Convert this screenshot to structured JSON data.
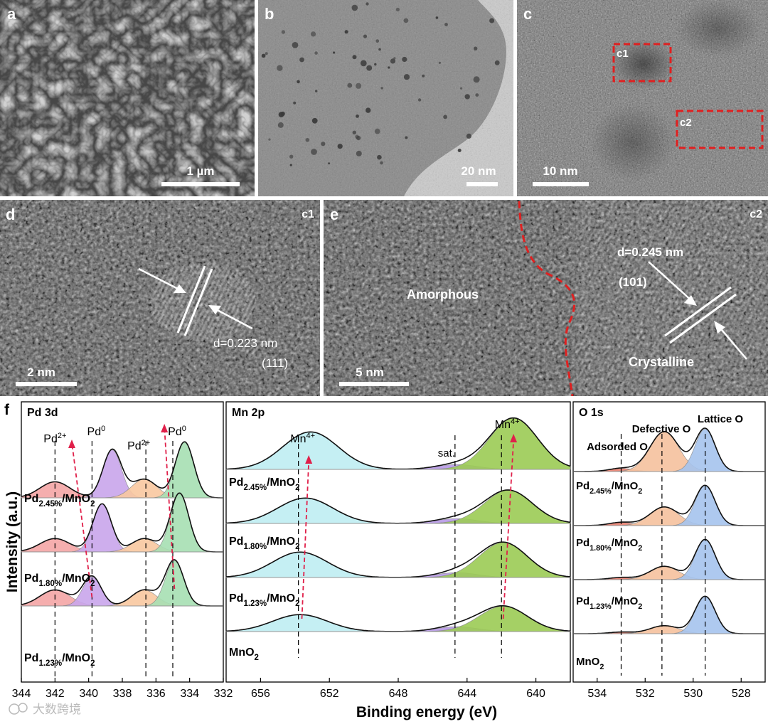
{
  "panels": {
    "a": {
      "letter": "a",
      "scale": "1 µm"
    },
    "b": {
      "letter": "b",
      "scale": "20 nm"
    },
    "c": {
      "letter": "c",
      "scale": "10 nm",
      "box1": "c1",
      "box2": "c2"
    },
    "d": {
      "letter": "d",
      "tag": "c1",
      "scale": "2 nm",
      "spacing": "d=0.223 nm",
      "plane": "(111)"
    },
    "e": {
      "letter": "e",
      "tag": "c2",
      "scale": "5 nm",
      "amorphous": "Amorphous",
      "crystalline": "Crystalline",
      "spacing": "d=0.245 nm",
      "plane": "(101)"
    }
  },
  "xps": {
    "letter": "f",
    "ylabel": "Intensity (a.u.)",
    "xlabel": "Binding energy (eV)",
    "colors": {
      "pd2": "#f4a6a6",
      "pd0_lo": "#c9a6ec",
      "pd2_hi": "#f9c8a0",
      "pd0_hi": "#a7dfb3",
      "mn_low": "#bfeef2",
      "mn_sat": "#b89ae6",
      "mn_high": "#9ccc55",
      "o_ads": "#e8806f",
      "o_def": "#f6c29e",
      "o_lat": "#a6c4ee",
      "guide": "#e0204a"
    },
    "samples": [
      {
        "label": "Pd",
        "sub": "2.45%",
        "suffix": "/MnO",
        "sub2": "2"
      },
      {
        "label": "Pd",
        "sub": "1.80%",
        "suffix": "/MnO",
        "sub2": "2"
      },
      {
        "label": "Pd",
        "sub": "1.23%",
        "suffix": "/MnO",
        "sub2": "2"
      },
      {
        "label": "MnO",
        "sub": "",
        "suffix": "",
        "sub2": "2"
      }
    ],
    "pd": {
      "title": "Pd 3d",
      "xlim": [
        344,
        332
      ],
      "ticks": [
        344,
        342,
        340,
        338,
        336,
        334,
        332
      ],
      "peaks": {
        "pd2_a": {
          "text": "Pd",
          "sup": "2+",
          "x": 342.0
        },
        "pd0_a": {
          "text": "Pd",
          "sup": "0",
          "x": 339.8
        },
        "pd2_b": {
          "text": "Pd",
          "sup": "2+",
          "x": 336.6
        },
        "pd0_b": {
          "text": "Pd",
          "sup": "0",
          "x": 335.0
        }
      }
    },
    "mn": {
      "title": "Mn 2p",
      "xlim": [
        658,
        638
      ],
      "ticks": [
        656,
        652,
        648,
        644,
        640
      ],
      "peaks": {
        "mn_a": {
          "text": "Mn",
          "sup": "4+",
          "x": 653.8
        },
        "sat": {
          "text": "sat.",
          "x": 644.7
        },
        "mn_b": {
          "text": "Mn",
          "sup": "4+",
          "x": 642.0
        }
      }
    },
    "o": {
      "title": "O 1s",
      "xlim": [
        535,
        527
      ],
      "ticks": [
        534,
        532,
        530,
        528
      ],
      "peaks": {
        "ads": {
          "text": "Adsorded O",
          "x": 533.0
        },
        "def": {
          "text": "Defective O",
          "x": 531.3
        },
        "lat": {
          "text": "Lattice O",
          "x": 529.5
        }
      }
    }
  },
  "watermark": "大数跨境"
}
